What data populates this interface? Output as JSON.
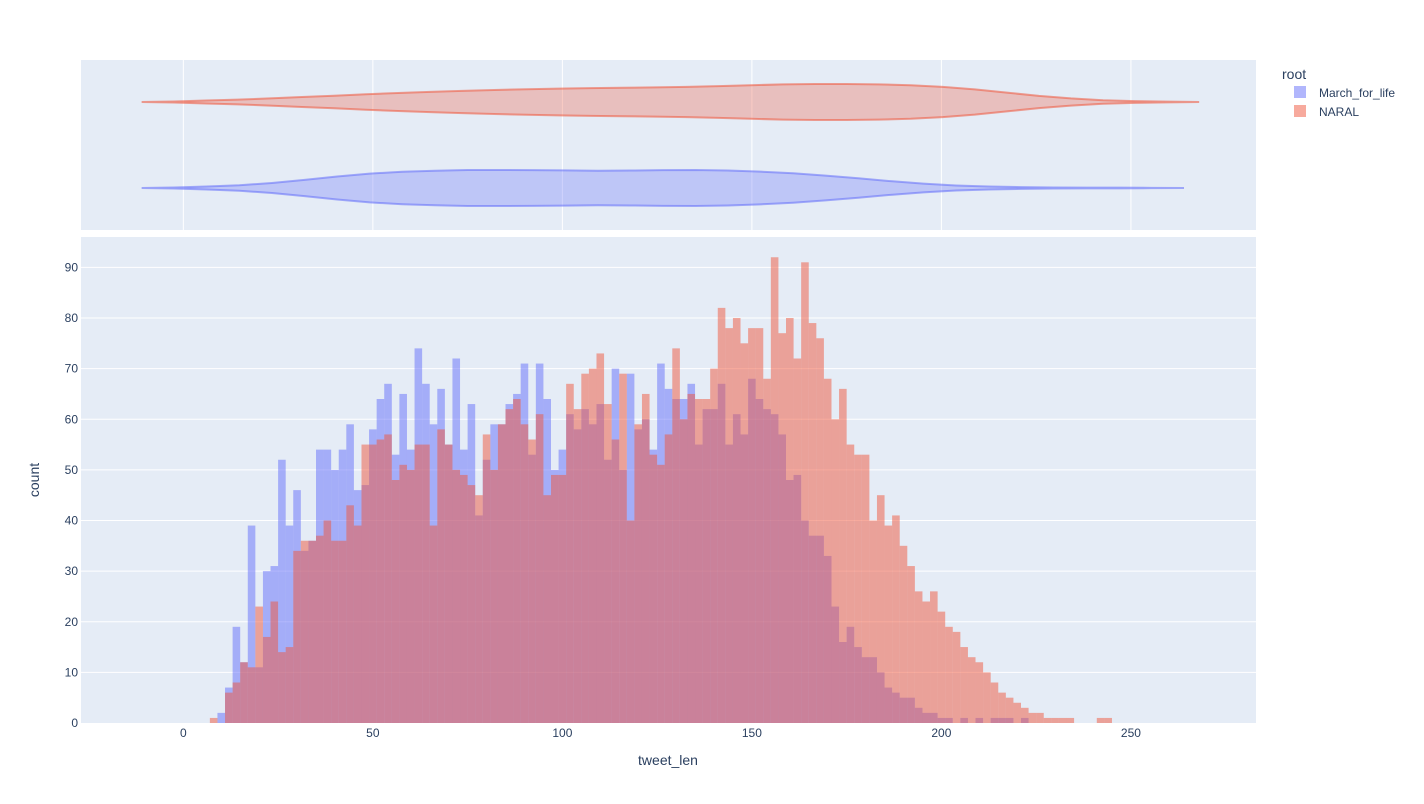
{
  "chart_data": {
    "type": "histogram",
    "xlabel": "tweet_len",
    "ylabel": "count",
    "xlim": [
      -27,
      283
    ],
    "ylim": [
      0,
      96
    ],
    "x_ticks": [
      0,
      50,
      100,
      150,
      200,
      250
    ],
    "y_ticks": [
      0,
      10,
      20,
      30,
      40,
      50,
      60,
      70,
      80,
      90
    ],
    "bin_width": 2,
    "bin_start": 7,
    "barmode": "overlay",
    "grid": true,
    "legend": {
      "title": "root",
      "placement": "top-right"
    },
    "colors": {
      "March_for_life": "#636efa",
      "NARAL": "#ef553b",
      "plot_bg": "#e5ecf6",
      "grid": "#ffffff",
      "text": "#2a3f5f"
    },
    "series": [
      {
        "name": "March_for_life",
        "values": [
          0,
          2,
          7,
          19,
          12,
          39,
          11,
          30,
          31,
          52,
          39,
          46,
          34,
          36,
          54,
          54,
          50,
          54,
          59,
          46,
          47,
          58,
          64,
          67,
          53,
          65,
          54,
          74,
          67,
          59,
          66,
          55,
          72,
          54,
          63,
          41,
          52,
          59,
          59,
          63,
          65,
          71,
          53,
          71,
          64,
          50,
          54,
          61,
          58,
          62,
          59,
          63,
          52,
          70,
          50,
          69,
          58,
          60,
          54,
          71,
          66,
          64,
          64,
          67,
          55,
          62,
          62,
          67,
          55,
          61,
          57,
          68,
          64,
          62,
          61,
          57,
          48,
          49,
          40,
          37,
          37,
          33,
          23,
          16,
          19,
          15,
          13,
          13,
          10,
          7,
          6,
          5,
          5,
          3,
          2,
          2,
          1,
          1,
          0,
          1,
          0,
          1,
          0,
          1,
          1,
          1,
          0,
          1,
          0
        ],
        "violin_halfwidth": [
          0,
          0.03,
          0.08,
          0.15,
          0.28,
          0.45,
          0.64,
          0.8,
          0.9,
          0.96,
          1,
          1,
          0.99,
          0.98,
          0.96,
          0.97,
          0.99,
          1,
          0.97,
          0.91,
          0.82,
          0.69,
          0.54,
          0.38,
          0.24,
          0.14,
          0.08,
          0.05,
          0.03,
          0.02,
          0.02,
          0.01,
          0
        ]
      },
      {
        "name": "NARAL",
        "values": [
          1,
          0,
          6,
          8,
          12,
          11,
          23,
          17,
          24,
          14,
          15,
          34,
          36,
          36,
          37,
          40,
          36,
          36,
          43,
          39,
          55,
          55,
          56,
          57,
          48,
          51,
          50,
          55,
          55,
          39,
          58,
          55,
          50,
          49,
          47,
          45,
          57,
          50,
          59,
          62,
          64,
          59,
          56,
          61,
          45,
          49,
          49,
          67,
          62,
          69,
          70,
          73,
          63,
          56,
          69,
          40,
          59,
          65,
          53,
          51,
          57,
          74,
          60,
          65,
          64,
          64,
          70,
          82,
          78,
          80,
          75,
          78,
          78,
          68,
          92,
          77,
          80,
          72,
          91,
          79,
          76,
          68,
          60,
          66,
          55,
          53,
          53,
          40,
          45,
          39,
          41,
          35,
          31,
          26,
          24,
          26,
          22,
          19,
          18,
          15,
          13,
          12,
          10,
          8,
          6,
          5,
          4,
          3,
          2,
          2,
          1,
          1,
          1,
          1,
          0,
          0,
          0,
          1,
          1
        ],
        "violin_halfwidth": [
          0,
          0.03,
          0.08,
          0.13,
          0.2,
          0.28,
          0.35,
          0.43,
          0.5,
          0.56,
          0.62,
          0.67,
          0.71,
          0.74,
          0.77,
          0.79,
          0.81,
          0.84,
          0.88,
          0.93,
          0.98,
          1,
          1,
          0.98,
          0.93,
          0.84,
          0.7,
          0.52,
          0.34,
          0.2,
          0.1,
          0.05,
          0.02,
          0
        ]
      }
    ],
    "violin_spans": {
      "March_for_life": [
        -11,
        264
      ],
      "NARAL": [
        -11,
        268
      ]
    }
  }
}
